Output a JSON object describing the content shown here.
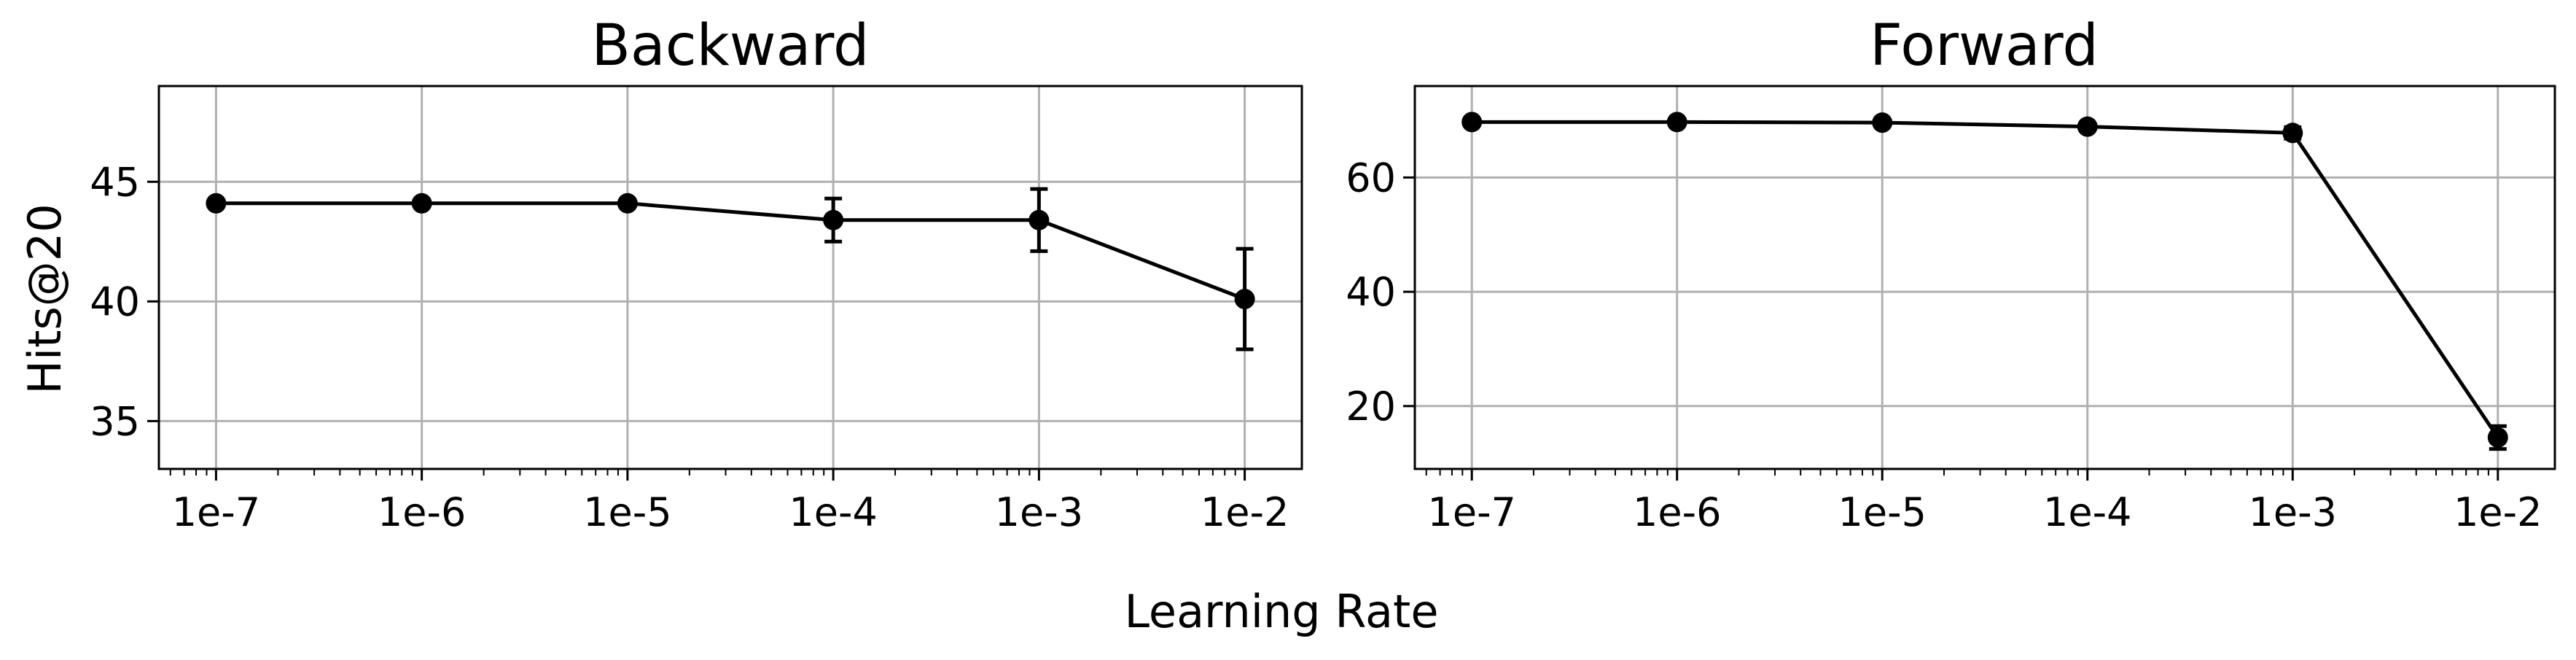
{
  "figure": {
    "xlabel": "Learning Rate",
    "ylabel": "Hits@20"
  },
  "chart_data": [
    {
      "type": "line",
      "title": "Backward",
      "xscale": "log",
      "x": [
        1e-07,
        1e-06,
        1e-05,
        0.0001,
        0.001,
        0.01
      ],
      "xticklabels": [
        "1e-7",
        "1e-6",
        "1e-5",
        "1e-4",
        "1e-3",
        "1e-2"
      ],
      "values": [
        44.1,
        44.1,
        44.1,
        43.4,
        43.4,
        40.1
      ],
      "errors": [
        0.0,
        0.0,
        0.0,
        0.9,
        1.3,
        2.1
      ],
      "ylabel": "Hits@20",
      "ylim": [
        33,
        49
      ],
      "yticks": [
        35,
        40,
        45
      ],
      "grid": true,
      "color": "#000000"
    },
    {
      "type": "line",
      "title": "Forward",
      "xscale": "log",
      "x": [
        1e-07,
        1e-06,
        1e-05,
        0.0001,
        0.001,
        0.01
      ],
      "xticklabels": [
        "1e-7",
        "1e-6",
        "1e-5",
        "1e-4",
        "1e-3",
        "1e-2"
      ],
      "values": [
        69.7,
        69.7,
        69.6,
        68.9,
        67.8,
        14.5
      ],
      "errors": [
        0.0,
        0.0,
        0.0,
        0.0,
        1.0,
        2.0
      ],
      "ylabel": "",
      "ylim": [
        9,
        76
      ],
      "yticks": [
        20,
        40,
        60
      ],
      "grid": true,
      "color": "#000000"
    }
  ]
}
